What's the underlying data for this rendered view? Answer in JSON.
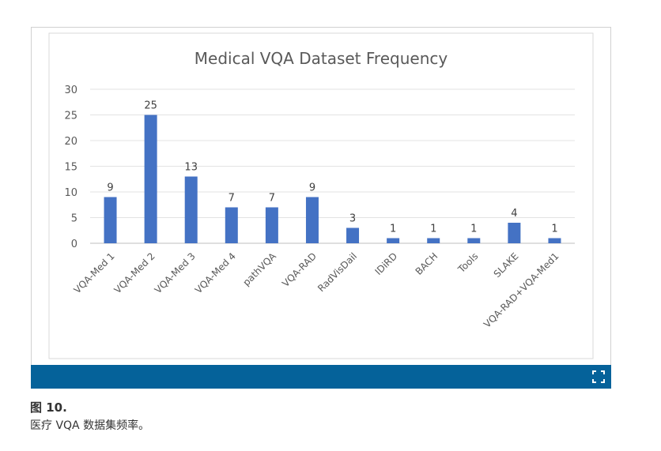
{
  "chart_data": {
    "type": "bar",
    "title": "Medical VQA Dataset Frequency",
    "xlabel": "",
    "ylabel": "",
    "categories": [
      "VQA-Med 1",
      "VQA-Med 2",
      "VQA-Med 3",
      "VQA-Med 4",
      "pathVQA",
      "VQA-RAD",
      "RadVisDail",
      "IDiRD",
      "BACH",
      "Tools",
      "SLAKE",
      "VQA-RAD+VQA-Med1"
    ],
    "values": [
      9,
      25,
      13,
      7,
      7,
      9,
      3,
      1,
      1,
      1,
      4,
      1
    ],
    "ylim": [
      0,
      30
    ],
    "yticks": [
      0,
      5,
      10,
      15,
      20,
      25,
      30
    ],
    "grid": true,
    "bar_color": "#4472c4",
    "data_labels": true
  },
  "figure": {
    "label": "图 10.",
    "caption": "医疗 VQA 数据集频率。",
    "accent_color": "#05629a",
    "expand_icon": "expand-icon"
  }
}
